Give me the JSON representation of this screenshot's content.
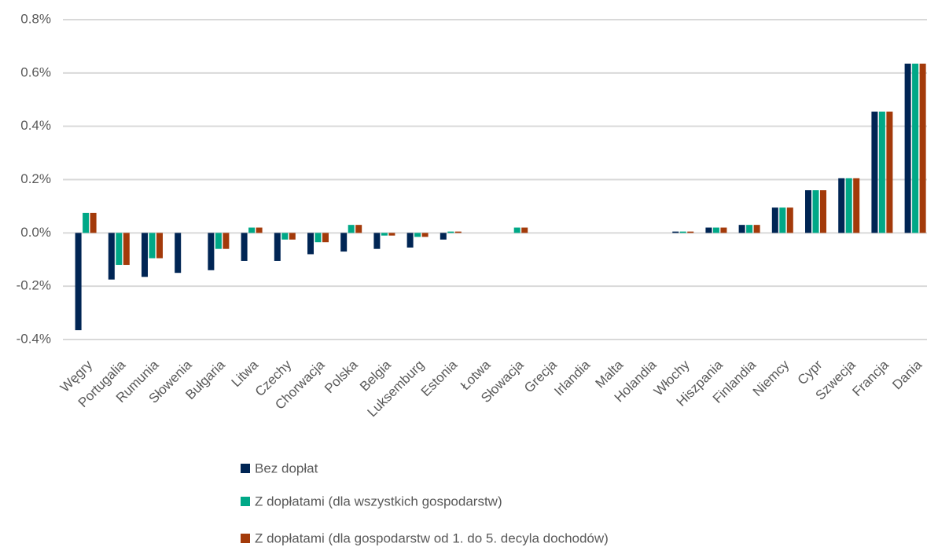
{
  "chart_data": {
    "type": "bar",
    "categories": [
      "Węgry",
      "Portugalia",
      "Rumunia",
      "Słowenia",
      "Bułgaria",
      "Litwa",
      "Czechy",
      "Chorwacja",
      "Polska",
      "Belgia",
      "Luksemburg",
      "Estonia",
      "Łotwa",
      "Słowacja",
      "Grecja",
      "Irlandia",
      "Malta",
      "Holandia",
      "Włochy",
      "Hiszpania",
      "Finlandia",
      "Niemcy",
      "Cypr",
      "Szwecja",
      "Francja",
      "Dania"
    ],
    "series": [
      {
        "name": "Bez dopłat",
        "color": "#002554",
        "values": [
          -0.365,
          -0.175,
          -0.165,
          -0.15,
          -0.14,
          -0.105,
          -0.105,
          -0.08,
          -0.07,
          -0.06,
          -0.055,
          -0.025,
          0,
          0,
          0,
          0,
          0,
          0,
          0.005,
          0.02,
          0.03,
          0.095,
          0.16,
          0.205,
          0.455,
          0.635
        ]
      },
      {
        "name": "Z dopłatami (dla wszystkich gospodarstw)",
        "color": "#00a887",
        "values": [
          0.075,
          -0.12,
          -0.095,
          0,
          -0.06,
          0.02,
          -0.025,
          -0.035,
          0.03,
          -0.01,
          -0.015,
          0.005,
          0,
          0.02,
          0,
          0,
          0,
          0,
          0.005,
          0.02,
          0.03,
          0.095,
          0.16,
          0.205,
          0.455,
          0.635
        ]
      },
      {
        "name": "Z dopłatami (dla gospodarstw od 1. do 5. decyla dochodów)",
        "color": "#a33a0a",
        "values": [
          0.075,
          -0.12,
          -0.095,
          0,
          -0.06,
          0.02,
          -0.025,
          -0.035,
          0.03,
          -0.01,
          -0.015,
          0.005,
          0,
          0.02,
          0,
          0,
          0,
          0,
          0.005,
          0.02,
          0.03,
          0.095,
          0.16,
          0.205,
          0.455,
          0.635
        ]
      }
    ],
    "ylim": [
      -0.4,
      0.8
    ],
    "yticks": [
      {
        "value": -0.4,
        "label": "-0.4%"
      },
      {
        "value": -0.2,
        "label": "-0.2%"
      },
      {
        "value": 0,
        "label": "0.0%"
      },
      {
        "value": 0.2,
        "label": "0.2%"
      },
      {
        "value": 0.4,
        "label": "0.4%"
      },
      {
        "value": 0.6,
        "label": "0.6%"
      },
      {
        "value": 0.8,
        "label": "0.8%"
      }
    ],
    "grid": true
  }
}
